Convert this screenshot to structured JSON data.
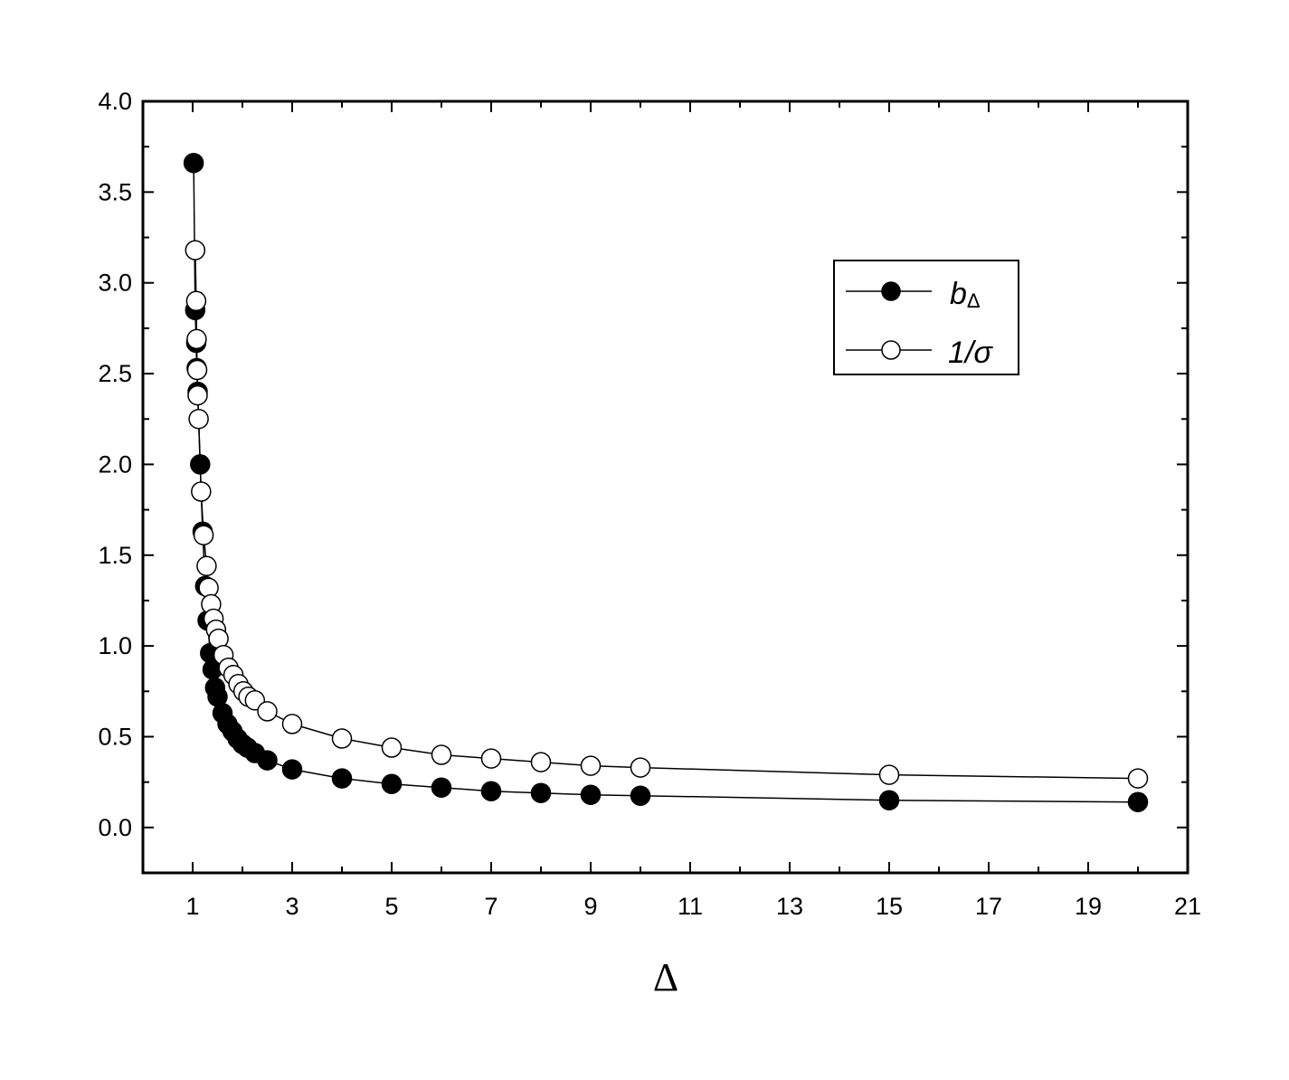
{
  "chart_data": {
    "type": "line",
    "xlabel": "Δ",
    "ylabel": "",
    "xlim": [
      0,
      21
    ],
    "ylim": [
      -0.25,
      4.0
    ],
    "xticks": [
      1,
      3,
      5,
      7,
      9,
      11,
      13,
      15,
      17,
      19,
      21
    ],
    "yticks": [
      0.0,
      0.5,
      1.0,
      1.5,
      2.0,
      2.5,
      3.0,
      3.5,
      4.0
    ],
    "ytick_labels": [
      "0.0",
      "0.5",
      "1.0",
      "1.5",
      "2.0",
      "2.5",
      "3.0",
      "3.5",
      "4.0"
    ],
    "legend_position": "top-right",
    "grid": false,
    "series": [
      {
        "name": "b",
        "name_sub": "Δ",
        "marker": "filled-circle",
        "color": "#000000",
        "points": [
          [
            1.02,
            3.66
          ],
          [
            1.05,
            2.85
          ],
          [
            1.07,
            2.67
          ],
          [
            1.08,
            2.53
          ],
          [
            1.1,
            2.4
          ],
          [
            1.15,
            2.0
          ],
          [
            1.2,
            1.63
          ],
          [
            1.25,
            1.33
          ],
          [
            1.3,
            1.14
          ],
          [
            1.35,
            0.96
          ],
          [
            1.4,
            0.87
          ],
          [
            1.45,
            0.77
          ],
          [
            1.5,
            0.72
          ],
          [
            1.6,
            0.63
          ],
          [
            1.7,
            0.57
          ],
          [
            1.8,
            0.53
          ],
          [
            1.9,
            0.49
          ],
          [
            2.0,
            0.46
          ],
          [
            2.1,
            0.44
          ],
          [
            2.25,
            0.41
          ],
          [
            2.5,
            0.37
          ],
          [
            3.0,
            0.32
          ],
          [
            4.0,
            0.27
          ],
          [
            5.0,
            0.24
          ],
          [
            6.0,
            0.22
          ],
          [
            7.0,
            0.2
          ],
          [
            8.0,
            0.19
          ],
          [
            9.0,
            0.18
          ],
          [
            10.0,
            0.175
          ],
          [
            15.0,
            0.15
          ],
          [
            20.0,
            0.14
          ]
        ]
      },
      {
        "name": "1/σ",
        "marker": "open-circle",
        "color": "#000000",
        "points": [
          [
            1.05,
            3.18
          ],
          [
            1.07,
            2.9
          ],
          [
            1.08,
            2.69
          ],
          [
            1.09,
            2.52
          ],
          [
            1.1,
            2.38
          ],
          [
            1.12,
            2.25
          ],
          [
            1.17,
            1.85
          ],
          [
            1.22,
            1.61
          ],
          [
            1.28,
            1.44
          ],
          [
            1.32,
            1.32
          ],
          [
            1.37,
            1.23
          ],
          [
            1.42,
            1.15
          ],
          [
            1.47,
            1.09
          ],
          [
            1.52,
            1.04
          ],
          [
            1.62,
            0.95
          ],
          [
            1.72,
            0.88
          ],
          [
            1.82,
            0.84
          ],
          [
            1.92,
            0.79
          ],
          [
            2.02,
            0.75
          ],
          [
            2.12,
            0.72
          ],
          [
            2.25,
            0.7
          ],
          [
            2.5,
            0.64
          ],
          [
            3.0,
            0.57
          ],
          [
            4.0,
            0.49
          ],
          [
            5.0,
            0.44
          ],
          [
            6.0,
            0.4
          ],
          [
            7.0,
            0.38
          ],
          [
            8.0,
            0.36
          ],
          [
            9.0,
            0.34
          ],
          [
            10.0,
            0.33
          ],
          [
            15.0,
            0.29
          ],
          [
            20.0,
            0.27
          ]
        ]
      }
    ]
  }
}
